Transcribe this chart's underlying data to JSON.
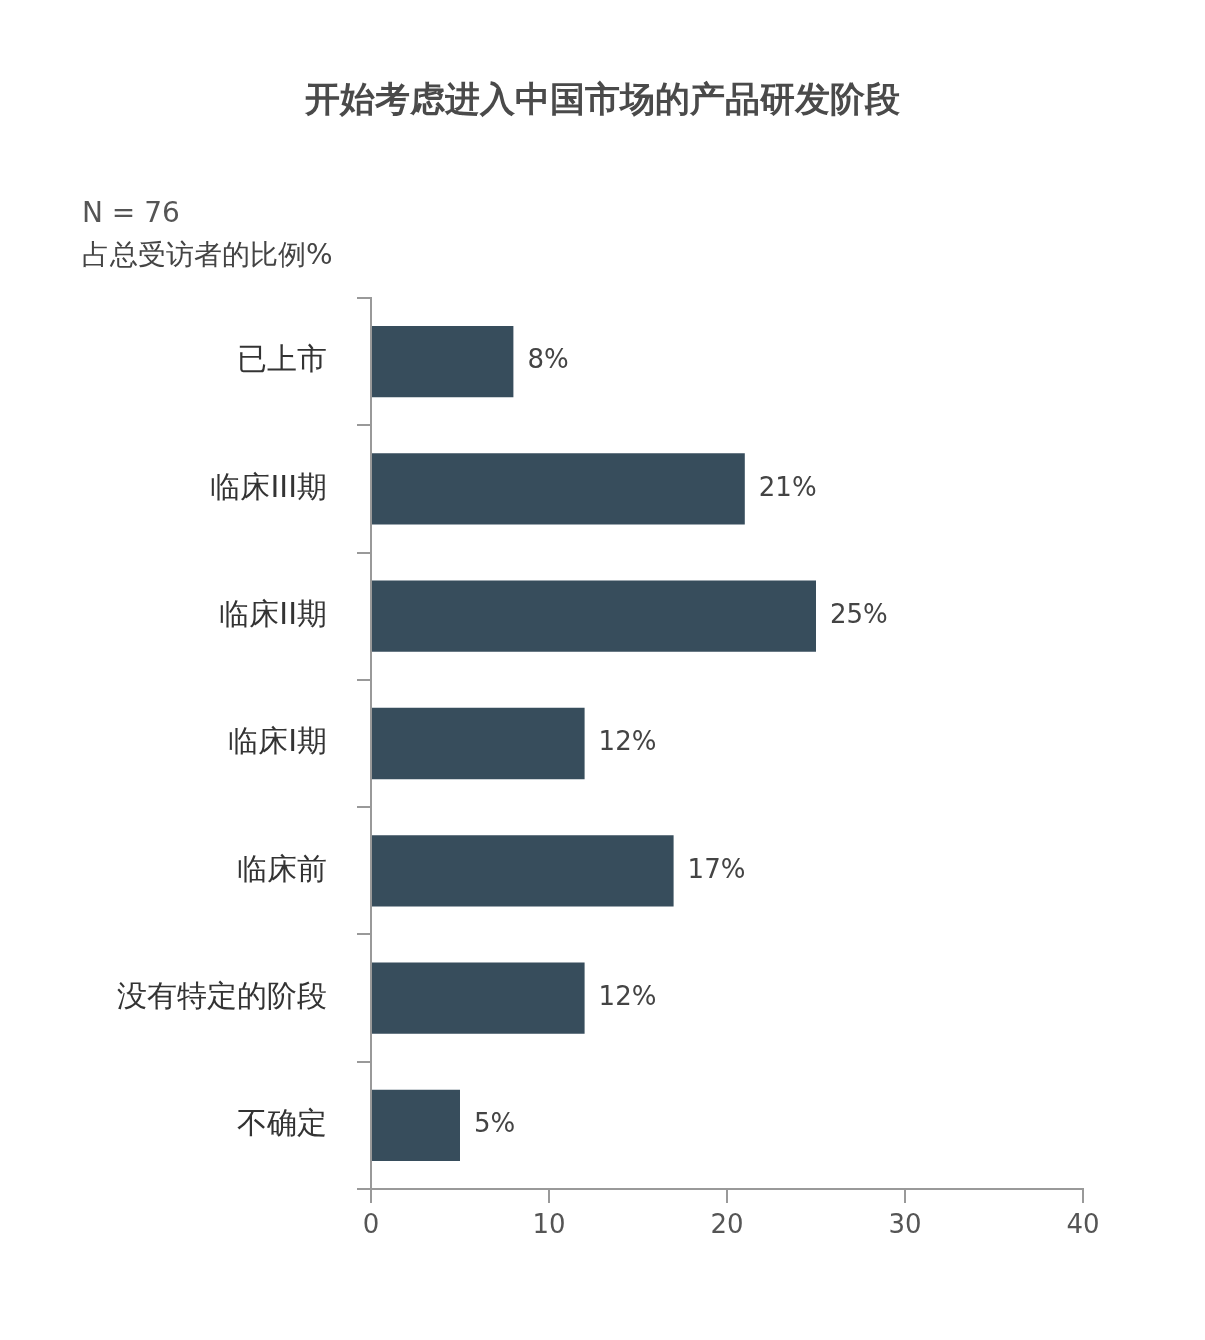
{
  "chart_data": {
    "type": "bar",
    "orientation": "horizontal",
    "title": "开始考虑进入中国市场的产品研发阶段",
    "subtitle": "N = 76",
    "xlabel": "占总受访者的比例%",
    "categories": [
      "已上市",
      "临床III期",
      "临床II期",
      "临床I期",
      "临床前",
      "没有特定的阶段",
      "不确定"
    ],
    "values": [
      8,
      21,
      25,
      12,
      17,
      12,
      5
    ],
    "value_labels": [
      "8%",
      "21%",
      "25%",
      "12%",
      "17%",
      "12%",
      "5%"
    ],
    "color": "#374d5c",
    "xlim": [
      0,
      40
    ],
    "xticks": [
      0,
      10,
      20,
      30,
      40
    ],
    "grid": false,
    "legend": false
  }
}
